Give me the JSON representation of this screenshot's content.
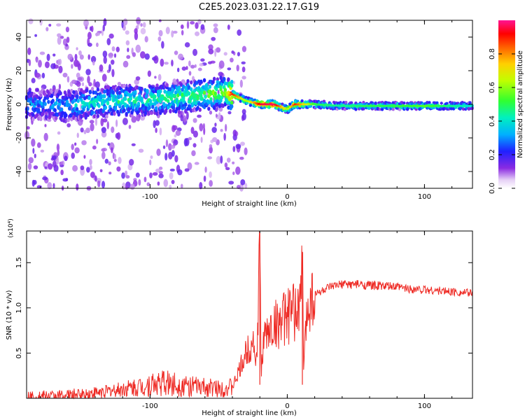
{
  "title": "C2E5.2023.031.22.17.G19",
  "chart_data": [
    {
      "type": "heatmap",
      "xlabel": "Height of straight line (km)",
      "ylabel": "Frequency (Hz)",
      "xlim": [
        -190,
        135
      ],
      "ylim": [
        -50,
        50
      ],
      "xticks": [
        -100,
        0,
        100
      ],
      "xtick_labels": [
        "-100",
        "0",
        "100"
      ],
      "yticks": [
        -40,
        -20,
        0,
        20,
        40
      ],
      "ytick_labels": [
        "-40",
        "-20",
        "0",
        "20",
        "40"
      ],
      "colorbar": {
        "label": "Normalized spectral amplitude",
        "range": [
          0,
          1
        ],
        "ticks": [
          0.0,
          0.2,
          0.4,
          0.6,
          0.8
        ],
        "tick_labels": [
          "0.0",
          "0.2",
          "0.4",
          "0.6",
          "0.8"
        ]
      },
      "ridge": {
        "x": [
          -180,
          -160,
          -140,
          -120,
          -100,
          -80,
          -60,
          -45,
          -40,
          -30,
          -20,
          -10,
          0,
          5,
          20,
          40,
          60,
          80,
          100,
          120,
          135
        ],
        "freq": [
          0,
          -1,
          1,
          2,
          3,
          4,
          6,
          7,
          6,
          2,
          0,
          0,
          -3,
          0,
          0,
          -1,
          -1,
          -1,
          -1,
          -1,
          -1
        ],
        "peak": [
          0.3,
          0.35,
          0.4,
          0.45,
          0.45,
          0.5,
          0.55,
          0.6,
          0.9,
          0.6,
          0.95,
          0.98,
          0.6,
          0.9,
          0.5,
          0.45,
          0.5,
          0.5,
          0.55,
          0.45,
          0.4
        ]
      }
    },
    {
      "type": "line",
      "xlabel": "Height of straight line (km)",
      "ylabel": "SNR (10 * v/v)",
      "yscale_note": "(x10⁴)",
      "xlim": [
        -190,
        135
      ],
      "ylim": [
        0,
        18500
      ],
      "xticks": [
        -100,
        0,
        100
      ],
      "xtick_labels": [
        "-100",
        "0",
        "100"
      ],
      "yticks": [
        5000,
        10000,
        15000
      ],
      "ytick_labels": [
        "0.5",
        "1.0",
        "1.5"
      ],
      "series": [
        {
          "name": "SNR",
          "color": "#ee2a24",
          "x": [
            -190,
            -170,
            -150,
            -130,
            -110,
            -100,
            -90,
            -80,
            -70,
            -60,
            -50,
            -40,
            -35,
            -30,
            -25,
            -22,
            -20,
            -19,
            -18,
            -15,
            -10,
            -5,
            0,
            5,
            10,
            11,
            12,
            15,
            20,
            30,
            40,
            50,
            60,
            70,
            80,
            90,
            100,
            110,
            120,
            135
          ],
          "y": [
            100,
            200,
            400,
            800,
            1200,
            1500,
            1700,
            1500,
            1300,
            1200,
            1100,
            1200,
            3000,
            5000,
            6500,
            4000,
            18300,
            2000,
            6000,
            7000,
            8000,
            8500,
            9000,
            9500,
            10500,
            16200,
            3500,
            11000,
            11500,
            12200,
            12600,
            12600,
            12500,
            12400,
            12300,
            12100,
            12000,
            11900,
            11800,
            11600
          ]
        }
      ]
    }
  ],
  "colors": {
    "line": "#ee2a24",
    "axis": "#000000"
  }
}
